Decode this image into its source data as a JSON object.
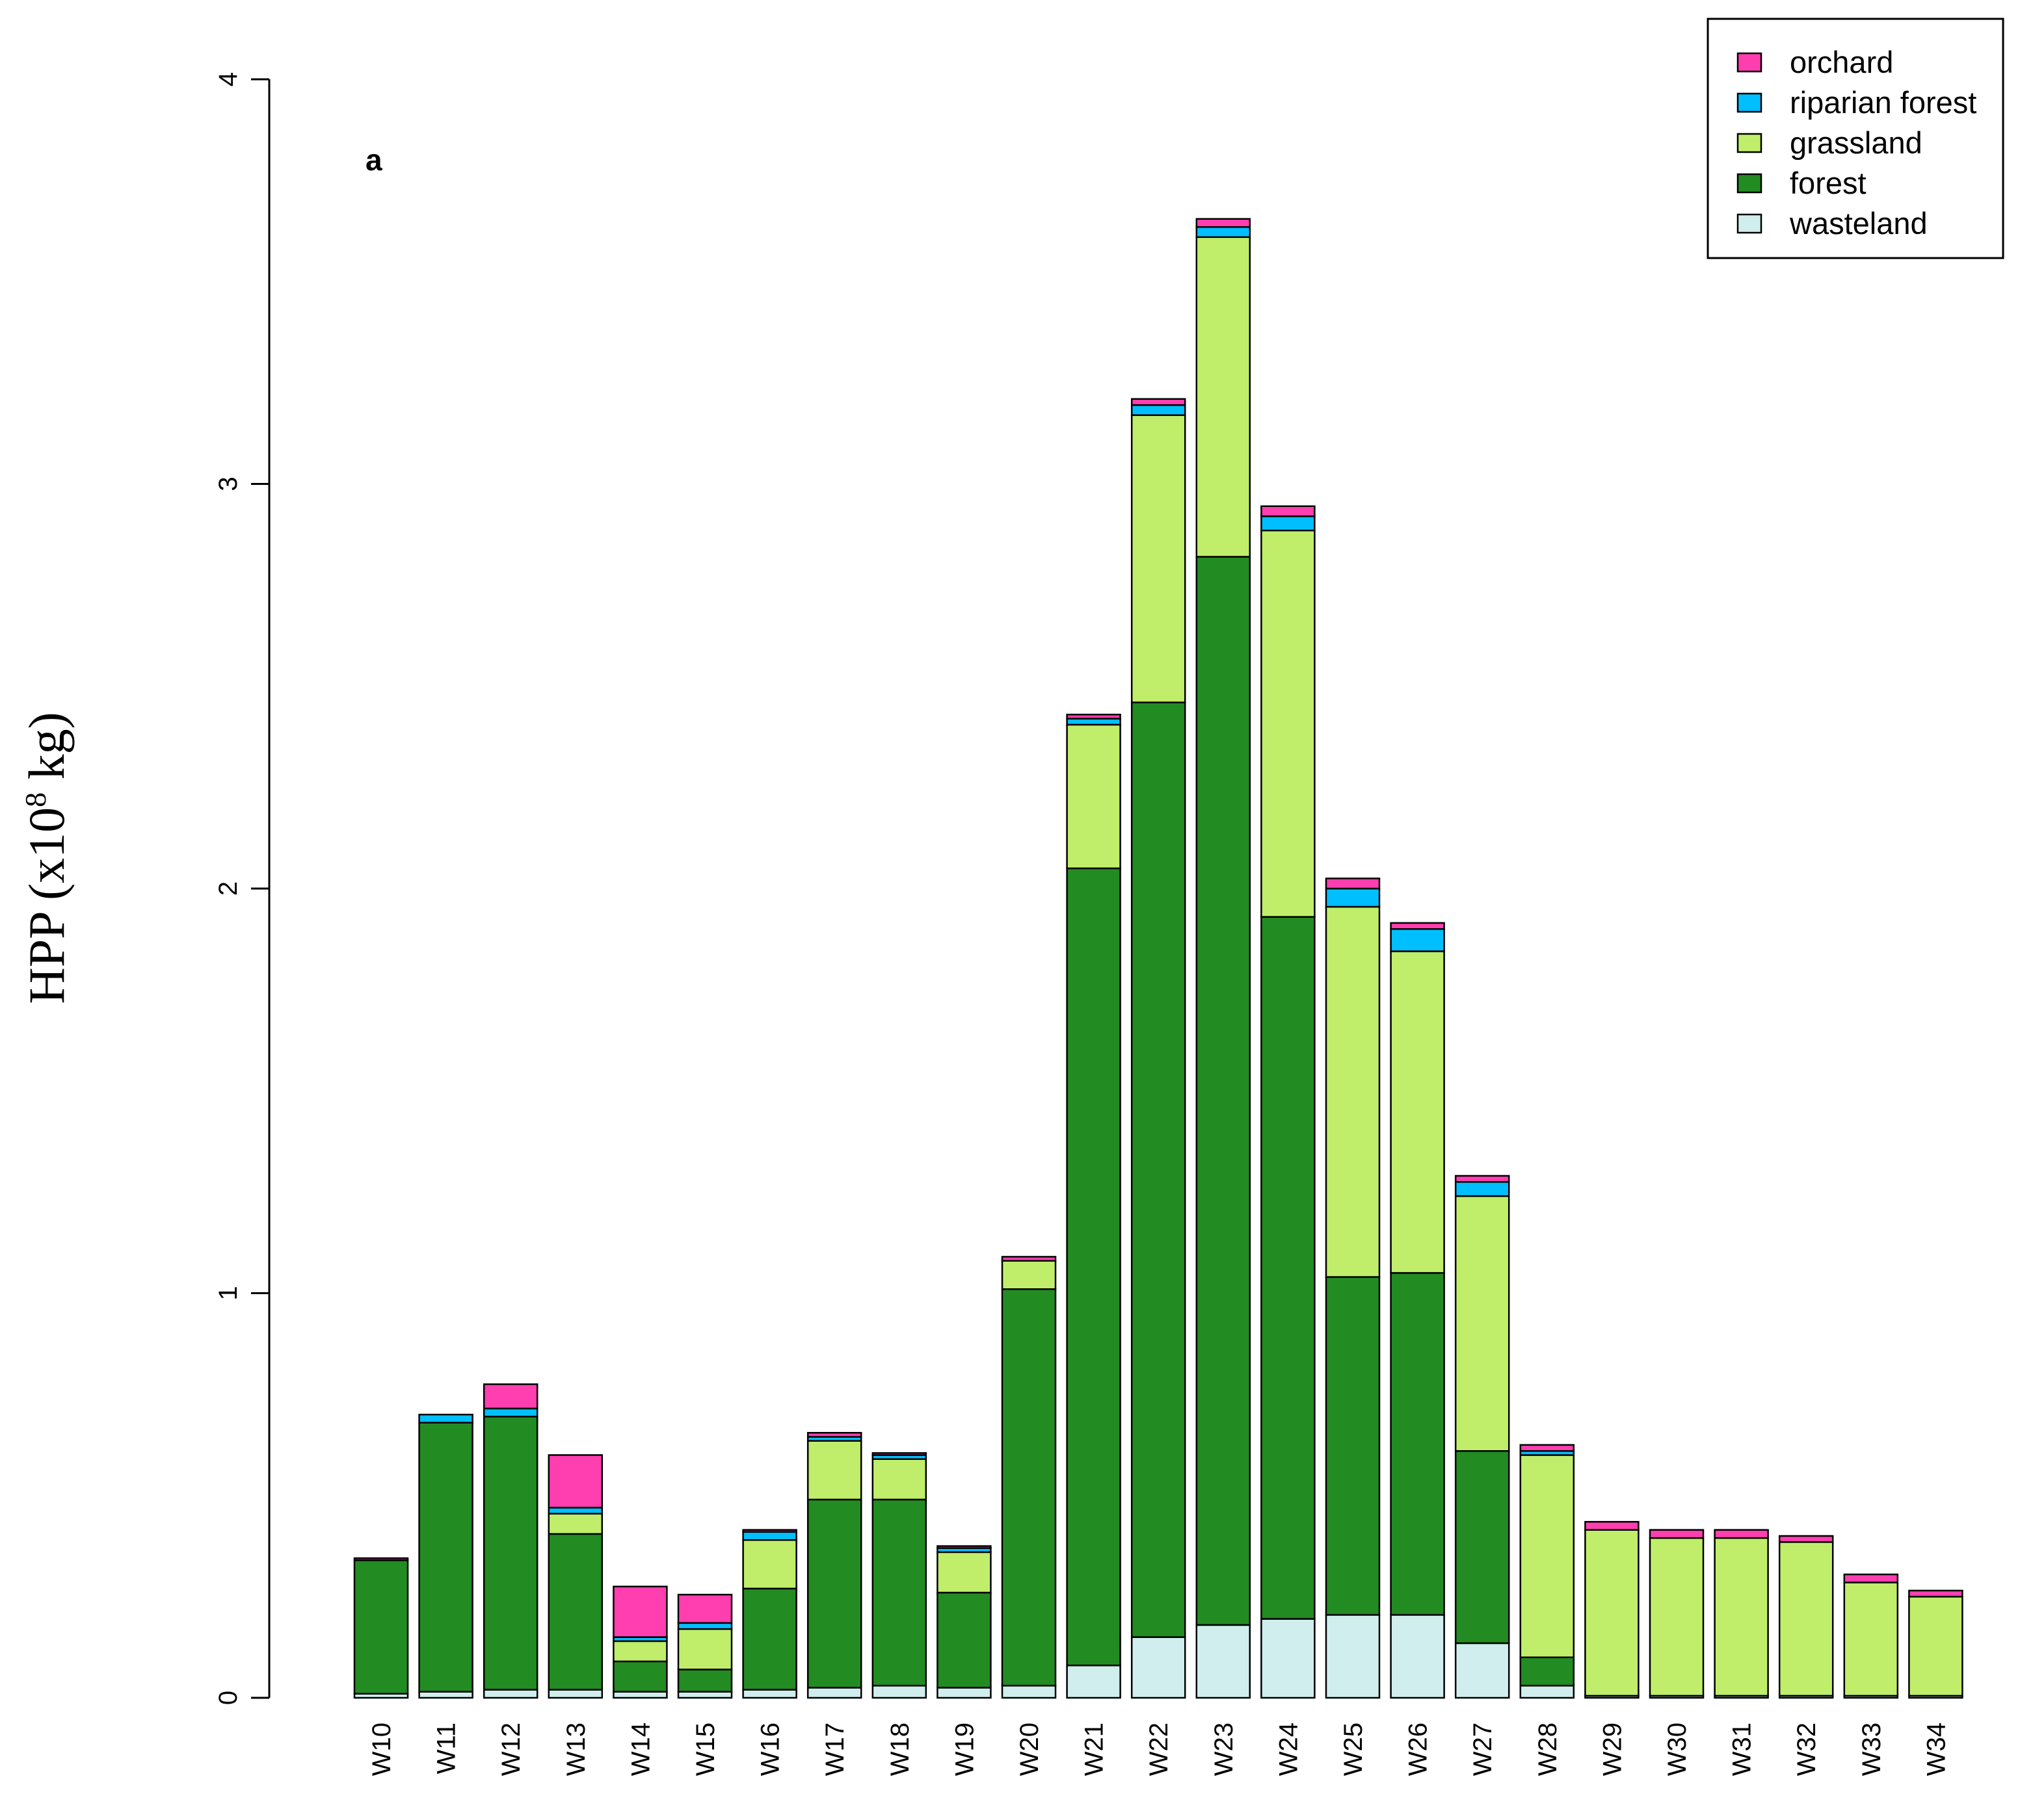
{
  "chart_data": {
    "type": "bar",
    "stacked": true,
    "panel_label": "a",
    "ylabel_prefix": "HPP (x10",
    "ylabel_exponent": "8",
    "ylabel_suffix": " kg)",
    "xlabel": "",
    "ylim": [
      0,
      4
    ],
    "yticks": [
      "0",
      "1",
      "2",
      "3",
      "4"
    ],
    "grid": false,
    "legend_position": "top-right",
    "categories": [
      "W10",
      "W11",
      "W12",
      "W13",
      "W14",
      "W15",
      "W16",
      "W17",
      "W18",
      "W19",
      "W20",
      "W21",
      "W22",
      "W23",
      "W24",
      "W25",
      "W26",
      "W27",
      "W28",
      "W29",
      "W30",
      "W31",
      "W32",
      "W33",
      "W34"
    ],
    "series": [
      {
        "name": "wasteland",
        "color": "#d0eeee",
        "values": [
          0.01,
          0.015,
          0.02,
          0.02,
          0.015,
          0.015,
          0.02,
          0.025,
          0.03,
          0.025,
          0.03,
          0.08,
          0.15,
          0.18,
          0.195,
          0.205,
          0.205,
          0.135,
          0.03,
          0.005,
          0.005,
          0.005,
          0.005,
          0.005,
          0.005
        ]
      },
      {
        "name": "forest",
        "color": "#228b22",
        "values": [
          0.33,
          0.665,
          0.675,
          0.385,
          0.075,
          0.055,
          0.25,
          0.465,
          0.46,
          0.235,
          0.98,
          1.97,
          2.31,
          2.64,
          1.735,
          0.835,
          0.845,
          0.475,
          0.07,
          0.0,
          0.0,
          0.0,
          0.0,
          0.0,
          0.0
        ]
      },
      {
        "name": "grassland",
        "color": "#c0ee6a",
        "values": [
          0.0,
          0.0,
          0.0,
          0.05,
          0.05,
          0.1,
          0.12,
          0.145,
          0.1,
          0.1,
          0.07,
          0.355,
          0.71,
          0.79,
          0.955,
          0.915,
          0.795,
          0.63,
          0.5,
          0.41,
          0.39,
          0.39,
          0.38,
          0.28,
          0.245
        ]
      },
      {
        "name": "riparian forest",
        "color": "#00bfff",
        "values": [
          0.0,
          0.02,
          0.02,
          0.015,
          0.01,
          0.015,
          0.02,
          0.01,
          0.01,
          0.01,
          0.0,
          0.015,
          0.025,
          0.025,
          0.035,
          0.045,
          0.055,
          0.035,
          0.01,
          0.0,
          0.0,
          0.0,
          0.0,
          0.0,
          0.0
        ]
      },
      {
        "name": "orchard",
        "color": "#ff3eaf",
        "values": [
          0.005,
          0.0,
          0.06,
          0.13,
          0.125,
          0.07,
          0.005,
          0.01,
          0.005,
          0.005,
          0.01,
          0.01,
          0.015,
          0.02,
          0.025,
          0.025,
          0.015,
          0.015,
          0.015,
          0.02,
          0.02,
          0.02,
          0.015,
          0.02,
          0.015
        ]
      }
    ],
    "legend_order": [
      "orchard",
      "riparian forest",
      "grassland",
      "forest",
      "wasteland"
    ]
  }
}
